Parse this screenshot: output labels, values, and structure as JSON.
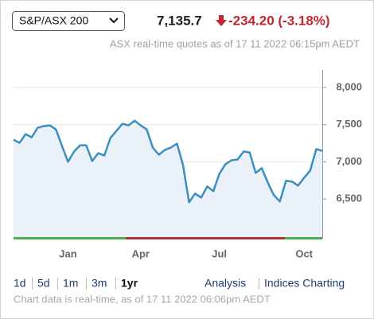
{
  "header": {
    "index_select": "S&P/ASX 200",
    "price": "7,135.7",
    "change": "-234.20 (-3.18%)",
    "quote_time": "ASX real-time quotes as of 17 11 2022 06:15pm AEDT"
  },
  "chart_data": {
    "type": "line",
    "color": "#3a8fc0",
    "fill": "#eaf1f8",
    "categories": [
      null,
      null,
      null,
      null,
      null,
      null,
      null,
      null,
      null,
      "Jan",
      null,
      null,
      null,
      null,
      null,
      null,
      null,
      null,
      null,
      null,
      null,
      "Apr",
      null,
      null,
      null,
      null,
      null,
      null,
      null,
      null,
      null,
      null,
      null,
      null,
      "Jul",
      null,
      null,
      null,
      null,
      null,
      null,
      null,
      null,
      null,
      null,
      null,
      null,
      null,
      "Oct",
      null,
      null,
      null
    ],
    "values": [
      7298,
      7255,
      7372,
      7330,
      7458,
      7479,
      7490,
      7436,
      7213,
      7000,
      7138,
      7223,
      7223,
      7011,
      7117,
      7085,
      7319,
      7415,
      7511,
      7490,
      7553,
      7490,
      7436,
      7192,
      7096,
      7160,
      7192,
      7245,
      6957,
      6457,
      6574,
      6521,
      6670,
      6606,
      6840,
      6968,
      7021,
      7032,
      7138,
      7128,
      6851,
      6915,
      6723,
      6553,
      6468,
      6745,
      6734,
      6681,
      6787,
      6883,
      7170,
      7149
    ],
    "ylim": [
      5968,
      8234
    ],
    "yticks": [
      {
        "value": 6500,
        "label": "6,500"
      },
      {
        "value": 7000,
        "label": "7,000"
      },
      {
        "value": 7500,
        "label": "7,500"
      },
      {
        "value": 8000,
        "label": "8,000"
      }
    ],
    "grid": true
  },
  "ranges": {
    "items": [
      "1d",
      "5d",
      "1m",
      "3m",
      "1yr"
    ],
    "selected": 4
  },
  "links": [
    "Analysis",
    "Indices Charting"
  ],
  "footer": "Chart data is real-time, as of 17 11 2022 06:06pm AEDT"
}
